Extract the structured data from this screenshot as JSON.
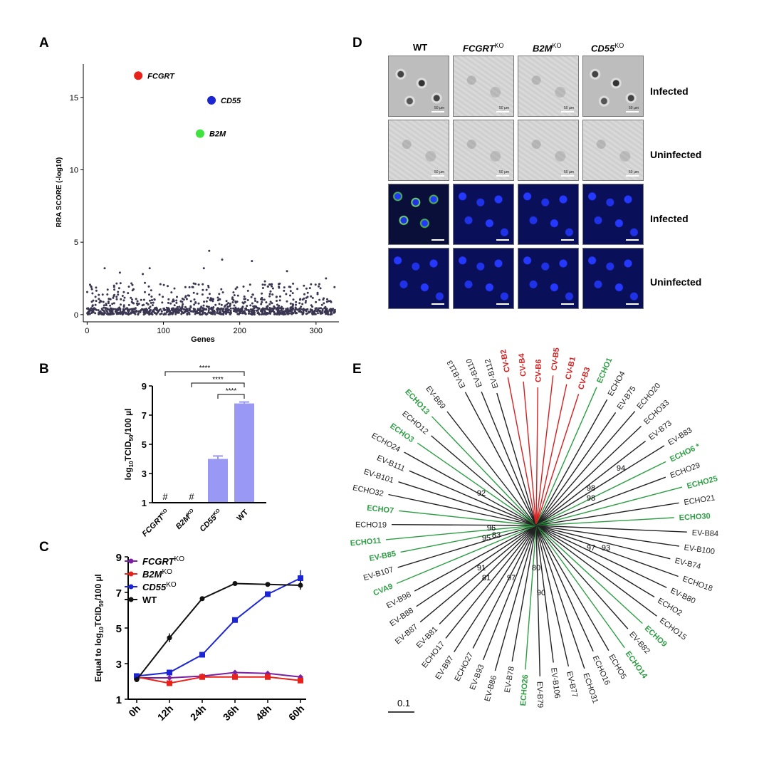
{
  "panels": {
    "A": "A",
    "B": "B",
    "C": "C",
    "D": "D",
    "E": "E"
  },
  "panelA": {
    "ylabel": "RRA SCORE (-log10)",
    "xlabel": "Genes",
    "xticks": [
      "0",
      "100",
      "200",
      "300"
    ],
    "yticks": [
      "0",
      "5",
      "10",
      "15"
    ],
    "highlights": [
      {
        "label": "FCGRT",
        "color": "#e8211b"
      },
      {
        "label": "CD55",
        "color": "#1b25d4"
      },
      {
        "label": "B2M",
        "color": "#3fe23f"
      }
    ]
  },
  "panelB": {
    "ylabel_main": "log",
    "ylabel_sub": "10",
    "ylabel_mid": "TCID",
    "ylabel_sub2": "50",
    "ylabel_tail": "/100 µl",
    "yticks": [
      "1",
      "3",
      "5",
      "7",
      "9"
    ],
    "categories": [
      {
        "name": "FCGRT",
        "sup": "KO",
        "italic": true
      },
      {
        "name": "B2M",
        "sup": "KO",
        "italic": true
      },
      {
        "name": "CD55",
        "sup": "KO",
        "italic": true
      },
      {
        "name": "WT",
        "sup": "",
        "italic": false
      }
    ],
    "hash": "#",
    "sig": "****",
    "bar_color": "#9999f5"
  },
  "panelC": {
    "ylabel_a": "Equal to log",
    "ylabel_sub": "10",
    "ylabel_b": "TCID",
    "ylabel_sub2": "50",
    "ylabel_c": "/100 µl",
    "yticks": [
      "1",
      "3",
      "5",
      "7",
      "9"
    ],
    "xticks": [
      "0h",
      "12h",
      "24h",
      "36h",
      "48h",
      "60h"
    ],
    "legend": [
      {
        "name": "FCGRT",
        "sup": "KO",
        "italic": true,
        "color": "#7b1fa2"
      },
      {
        "name": "B2M",
        "sup": "KO",
        "italic": true,
        "color": "#e8211b"
      },
      {
        "name": "CD55",
        "sup": "KO",
        "italic": true,
        "color": "#1b25d4"
      },
      {
        "name": "WT",
        "sup": "",
        "italic": false,
        "color": "#111111"
      }
    ]
  },
  "panelD": {
    "columns": [
      {
        "name": "WT",
        "sup": "",
        "italic": false
      },
      {
        "name": "FCGRT",
        "sup": "KO",
        "italic": true
      },
      {
        "name": "B2M",
        "sup": "KO",
        "italic": true
      },
      {
        "name": "CD55",
        "sup": "KO",
        "italic": true
      }
    ],
    "rows": [
      "Infected",
      "Uninfected",
      "Infected",
      "Uninfected"
    ],
    "scale": "50 µm"
  },
  "panelE": {
    "scale": "0.1",
    "tips": [
      {
        "t": "EV-B113",
        "c": "#222"
      },
      {
        "t": "EV-B110",
        "c": "#222"
      },
      {
        "t": "EV-B112",
        "c": "#222"
      },
      {
        "t": "CV-B2",
        "c": "#d42020"
      },
      {
        "t": "CV-B4",
        "c": "#d42020"
      },
      {
        "t": "CV-B6",
        "c": "#d42020"
      },
      {
        "t": "CV-B5",
        "c": "#d42020"
      },
      {
        "t": "CV-B1",
        "c": "#d42020"
      },
      {
        "t": "CV-B3",
        "c": "#d42020"
      },
      {
        "t": "ECHO1",
        "c": "#2e9e44"
      },
      {
        "t": "ECHO4",
        "c": "#222"
      },
      {
        "t": "EV-B75",
        "c": "#222"
      },
      {
        "t": "ECHO20",
        "c": "#222"
      },
      {
        "t": "ECHO33",
        "c": "#222"
      },
      {
        "t": "EV-B73",
        "c": "#222"
      },
      {
        "t": "EV-B83",
        "c": "#222"
      },
      {
        "t": "ECHO6 *",
        "c": "#2e9e44"
      },
      {
        "t": "ECHO29",
        "c": "#222"
      },
      {
        "t": "ECHO25",
        "c": "#2e9e44"
      },
      {
        "t": "ECHO21",
        "c": "#222"
      },
      {
        "t": "ECHO30",
        "c": "#2e9e44"
      },
      {
        "t": "EV-B84",
        "c": "#222"
      },
      {
        "t": "EV-B100",
        "c": "#222"
      },
      {
        "t": "EV-B74",
        "c": "#222"
      },
      {
        "t": "ECHO18",
        "c": "#222"
      },
      {
        "t": "EV-B80",
        "c": "#222"
      },
      {
        "t": "ECHO2",
        "c": "#222"
      },
      {
        "t": "ECHO15",
        "c": "#222"
      },
      {
        "t": "ECHO9",
        "c": "#2e9e44"
      },
      {
        "t": "EV-B82",
        "c": "#222"
      },
      {
        "t": "ECHO14",
        "c": "#2e9e44"
      },
      {
        "t": "ECHO5",
        "c": "#222"
      },
      {
        "t": "ECHO16",
        "c": "#222"
      },
      {
        "t": "ECHO31",
        "c": "#222"
      },
      {
        "t": "EV-B77",
        "c": "#222"
      },
      {
        "t": "EV-B106",
        "c": "#222"
      },
      {
        "t": "EV-B79",
        "c": "#222"
      },
      {
        "t": "ECHO26",
        "c": "#2e9e44"
      },
      {
        "t": "EV-B78",
        "c": "#222"
      },
      {
        "t": "EV-B86",
        "c": "#222"
      },
      {
        "t": "EV-B93",
        "c": "#222"
      },
      {
        "t": "ECHO27",
        "c": "#222"
      },
      {
        "t": "EV-B97",
        "c": "#222"
      },
      {
        "t": "ECHO17",
        "c": "#222"
      },
      {
        "t": "EV-B81",
        "c": "#222"
      },
      {
        "t": "EV-B87",
        "c": "#222"
      },
      {
        "t": "EV-B88",
        "c": "#222"
      },
      {
        "t": "EV-B98",
        "c": "#222"
      },
      {
        "t": "CVA9",
        "c": "#2e9e44"
      },
      {
        "t": "EV-B107",
        "c": "#222"
      },
      {
        "t": "EV-B85",
        "c": "#2e9e44"
      },
      {
        "t": "ECHO11",
        "c": "#2e9e44"
      },
      {
        "t": "ECHO19",
        "c": "#222"
      },
      {
        "t": "ECHO7",
        "c": "#2e9e44"
      },
      {
        "t": "ECHO32",
        "c": "#222"
      },
      {
        "t": "EV-B101",
        "c": "#222"
      },
      {
        "t": "EV-B111",
        "c": "#222"
      },
      {
        "t": "ECHO24",
        "c": "#222"
      },
      {
        "t": "ECHO3",
        "c": "#2e9e44"
      },
      {
        "t": "ECHO12",
        "c": "#222"
      },
      {
        "t": "ECHO13",
        "c": "#2e9e44"
      },
      {
        "t": "EV-B69",
        "c": "#222"
      }
    ],
    "bootstraps": [
      "94",
      "98",
      "98",
      "92",
      "93",
      "96",
      "95",
      "83",
      "97",
      "80",
      "91",
      "81",
      "97",
      "90"
    ]
  },
  "chart_data": [
    {
      "type": "scatter",
      "panel": "A",
      "xlabel": "Genes",
      "ylabel": "RRA SCORE (-log10)",
      "xlim": [
        -5,
        330
      ],
      "ylim": [
        -0.5,
        17.3
      ],
      "highlighted": [
        {
          "label": "FCGRT",
          "x": 67,
          "y": 16.5
        },
        {
          "label": "CD55",
          "x": 163,
          "y": 14.8
        },
        {
          "label": "B2M",
          "x": 148,
          "y": 12.5
        }
      ],
      "notable_background": [
        {
          "x": 160,
          "y": 4.4
        },
        {
          "x": 177,
          "y": 3.8
        },
        {
          "x": 216,
          "y": 3.7
        },
        {
          "x": 23,
          "y": 3.2
        },
        {
          "x": 82,
          "y": 3.2
        },
        {
          "x": 73,
          "y": 2.8
        },
        {
          "x": 43,
          "y": 2.9
        },
        {
          "x": 153,
          "y": 3.2
        },
        {
          "x": 262,
          "y": 3.0
        },
        {
          "x": 313,
          "y": 2.5
        },
        {
          "x": 233,
          "y": 2.3
        }
      ]
    },
    {
      "type": "bar",
      "panel": "B",
      "categories": [
        "FCGRT KO",
        "B2M KO",
        "CD55 KO",
        "WT"
      ],
      "values": [
        null,
        null,
        4.0,
        7.8
      ],
      "errors": [
        null,
        null,
        0.2,
        0.1
      ],
      "ylim": [
        1,
        9
      ],
      "not_detected": [
        "FCGRT KO",
        "B2M KO"
      ],
      "comparisons": [
        {
          "a": "FCGRT KO",
          "b": "WT",
          "label": "****"
        },
        {
          "a": "B2M KO",
          "b": "WT",
          "label": "****"
        },
        {
          "a": "CD55 KO",
          "b": "WT",
          "label": "****"
        }
      ]
    },
    {
      "type": "line",
      "panel": "C",
      "x": [
        "0h",
        "12h",
        "24h",
        "36h",
        "48h",
        "60h"
      ],
      "ylim": [
        1,
        9
      ],
      "series": [
        {
          "name": "FCGRT KO",
          "values": [
            2.2,
            2.2,
            2.3,
            2.5,
            2.45,
            2.25
          ]
        },
        {
          "name": "B2M KO",
          "values": [
            2.25,
            1.9,
            2.25,
            2.25,
            2.25,
            2.05
          ]
        },
        {
          "name": "CD55 KO",
          "values": [
            2.3,
            2.5,
            3.5,
            5.45,
            6.9,
            7.8
          ]
        },
        {
          "name": "WT",
          "values": [
            2.1,
            4.45,
            6.65,
            7.5,
            7.45,
            7.4
          ]
        }
      ]
    }
  ]
}
